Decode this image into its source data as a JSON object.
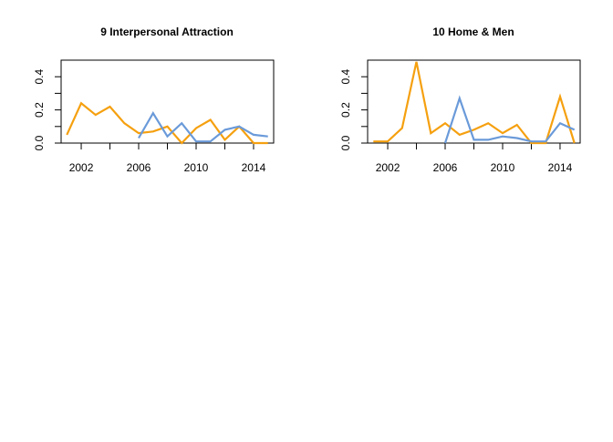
{
  "chart_data": [
    {
      "type": "line",
      "title": "9 Interpersonal Attraction",
      "xlabel": "",
      "ylabel": "",
      "xlim": [
        2000.6,
        2015.4
      ],
      "ylim": [
        0,
        0.5
      ],
      "xticks": [
        2002,
        2006,
        2010,
        2014
      ],
      "yticks": [
        0.0,
        0.2,
        0.4
      ],
      "series": [
        {
          "color": "#F5A00F",
          "x": [
            2001,
            2002,
            2003,
            2004,
            2005,
            2006,
            2007,
            2008,
            2009,
            2010,
            2011,
            2012,
            2013,
            2014,
            2015
          ],
          "y": [
            0.05,
            0.24,
            0.17,
            0.22,
            0.12,
            0.06,
            0.07,
            0.1,
            0.0,
            0.09,
            0.14,
            0.02,
            0.1,
            0.0,
            0.0
          ]
        },
        {
          "color": "#6A9AD9",
          "x": [
            2006,
            2007,
            2008,
            2009,
            2010,
            2011,
            2012,
            2013,
            2014,
            2015
          ],
          "y": [
            0.03,
            0.18,
            0.04,
            0.12,
            0.01,
            0.01,
            0.08,
            0.1,
            0.05,
            0.04
          ]
        }
      ]
    },
    {
      "type": "line",
      "title": "10 Home & Men",
      "xlabel": "",
      "ylabel": "",
      "xlim": [
        2000.6,
        2015.4
      ],
      "ylim": [
        0,
        0.5
      ],
      "xticks": [
        2002,
        2006,
        2010,
        2014
      ],
      "yticks": [
        0.0,
        0.2,
        0.4
      ],
      "series": [
        {
          "color": "#F5A00F",
          "x": [
            2001,
            2002,
            2003,
            2004,
            2005,
            2006,
            2007,
            2008,
            2009,
            2010,
            2011,
            2012,
            2013,
            2014,
            2015
          ],
          "y": [
            0.01,
            0.01,
            0.09,
            0.49,
            0.06,
            0.12,
            0.05,
            0.08,
            0.12,
            0.06,
            0.11,
            0.0,
            0.0,
            0.28,
            0.0
          ]
        },
        {
          "color": "#6A9AD9",
          "x": [
            2006,
            2007,
            2008,
            2009,
            2010,
            2011,
            2012,
            2013,
            2014,
            2015
          ],
          "y": [
            0.0,
            0.27,
            0.02,
            0.02,
            0.04,
            0.03,
            0.01,
            0.01,
            0.12,
            0.08
          ]
        }
      ]
    }
  ]
}
